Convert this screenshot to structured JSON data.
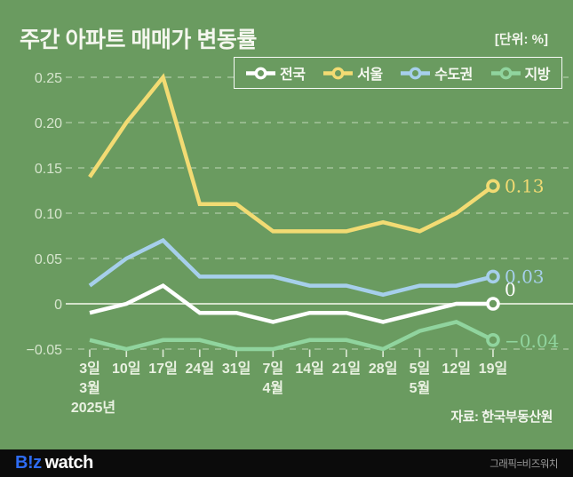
{
  "header": {
    "title": "주간 아파트 매매가 변동률",
    "unit": "[단위: %]"
  },
  "chart_data": {
    "type": "line",
    "title": "주간 아파트 매매가 변동률",
    "unit": "%",
    "grid": "horizontal dashed, solid zero line",
    "legend_position": "top-right",
    "ylim": [
      -0.05,
      0.25
    ],
    "yticks": [
      {
        "label": "0.25",
        "value": 0.25
      },
      {
        "label": "0.20",
        "value": 0.2
      },
      {
        "label": "0.15",
        "value": 0.15
      },
      {
        "label": "0.10",
        "value": 0.1
      },
      {
        "label": "0.05",
        "value": 0.05
      },
      {
        "label": "0",
        "value": 0
      },
      {
        "label": "−0.05",
        "value": -0.05
      }
    ],
    "categories": [
      "3일",
      "10일",
      "17일",
      "24일",
      "31일",
      "7일",
      "14일",
      "21일",
      "28일",
      "5일",
      "12일",
      "19일"
    ],
    "month_labels": [
      {
        "index": 0,
        "label": "3월"
      },
      {
        "index": 5,
        "label": "4월"
      },
      {
        "index": 9,
        "label": "5월"
      }
    ],
    "year_label": {
      "index": 0,
      "label": "2025년"
    },
    "series": [
      {
        "key": "nationwide",
        "name": "전국",
        "color": "#ffffff",
        "values": [
          -0.01,
          0.0,
          0.02,
          -0.01,
          -0.01,
          -0.02,
          -0.01,
          -0.01,
          -0.02,
          -0.01,
          0.0,
          0.0
        ],
        "end_label": "0"
      },
      {
        "key": "seoul",
        "name": "서울",
        "color": "#f2db73",
        "values": [
          0.14,
          0.2,
          0.25,
          0.11,
          0.11,
          0.08,
          0.08,
          0.08,
          0.09,
          0.08,
          0.1,
          0.13
        ],
        "end_label": "0.13"
      },
      {
        "key": "metro",
        "name": "수도권",
        "color": "#a6cfeb",
        "values": [
          0.02,
          0.05,
          0.07,
          0.03,
          0.03,
          0.03,
          0.02,
          0.02,
          0.01,
          0.02,
          0.02,
          0.03
        ],
        "end_label": "0.03"
      },
      {
        "key": "provincial",
        "name": "지방",
        "color": "#90d49e",
        "values": [
          -0.04,
          -0.05,
          -0.04,
          -0.04,
          -0.05,
          -0.05,
          -0.04,
          -0.04,
          -0.05,
          -0.03,
          -0.02,
          -0.04
        ],
        "end_label": "−0.04"
      }
    ],
    "source": "자료: 한국부동산원"
  },
  "footer": {
    "logo_b": "B!z",
    "logo_watch": "watch",
    "credit": "그래픽=비즈워치"
  },
  "colors": {
    "background": "#6a9b60",
    "footer_background": "#0b0b0b",
    "logo_blue": "#2e6cf3",
    "axis_text": "#d6e5cd"
  }
}
